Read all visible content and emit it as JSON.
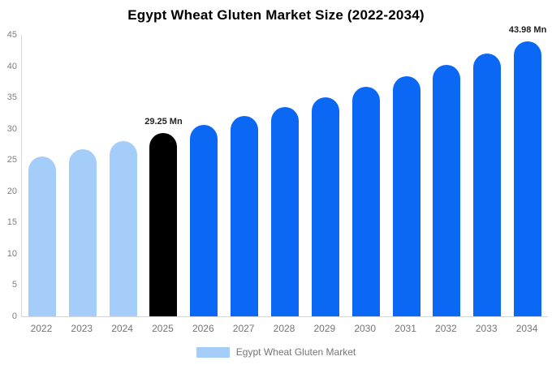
{
  "title": "Egypt Wheat Gluten Market Size (2022-2034)",
  "legend": {
    "label": "Egypt Wheat Gluten Market"
  },
  "colors": {
    "historical_bar": "#A5CDFA",
    "base_year_bar": "#000000",
    "forecast_bar": "#0A68F5",
    "axis_line": "#D7D7D7",
    "axis_text": "#808080",
    "category_text": "#757575",
    "legend_text": "#757575",
    "data_label_text": "#222222",
    "title_text": "#000000",
    "background": "#FFFFFF"
  },
  "chart_data": {
    "type": "bar",
    "title": "Egypt Wheat Gluten Market Size (2022-2034)",
    "unit": "Mn",
    "categories": [
      "2022",
      "2023",
      "2024",
      "2025",
      "2026",
      "2027",
      "2028",
      "2029",
      "2030",
      "2031",
      "2032",
      "2033",
      "2034"
    ],
    "values": [
      25.53,
      26.71,
      27.95,
      29.25,
      30.61,
      32.03,
      33.51,
      35.07,
      36.69,
      38.39,
      40.18,
      42.04,
      43.98
    ],
    "bar_colors": [
      "#A5CDFA",
      "#A5CDFA",
      "#A5CDFA",
      "#000000",
      "#0A68F5",
      "#0A68F5",
      "#0A68F5",
      "#0A68F5",
      "#0A68F5",
      "#0A68F5",
      "#0A68F5",
      "#0A68F5",
      "#0A68F5"
    ],
    "data_labels": [
      null,
      null,
      null,
      "29.25 Mn",
      null,
      null,
      null,
      null,
      null,
      null,
      null,
      null,
      "43.98 Mn"
    ],
    "xlabel": "",
    "ylabel": "",
    "ylim": [
      0,
      45
    ],
    "yticks": [
      0,
      5,
      10,
      15,
      20,
      25,
      30,
      35,
      40,
      45
    ],
    "grid": false,
    "legend_position": "bottom",
    "legend_entries": [
      "Egypt Wheat Gluten Market"
    ]
  }
}
